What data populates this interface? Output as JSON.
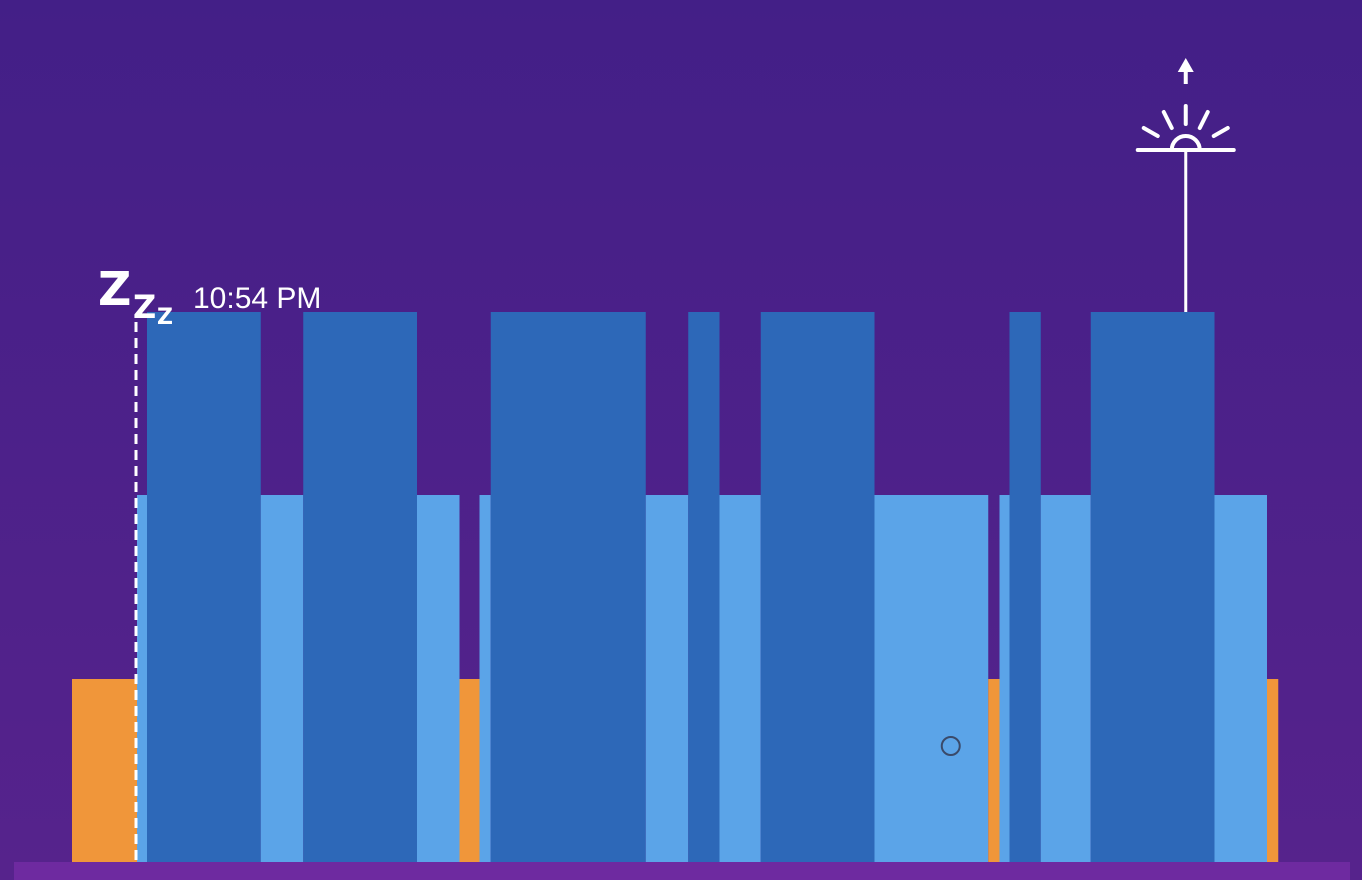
{
  "chart_data": {
    "type": "bar",
    "subtype": "sleep-stage-timeline",
    "sleep_start_label": "10:54 PM",
    "icons": {
      "sleep_start": "zzz-icon",
      "wake": "sunrise-icon",
      "wake_arrow": "up-arrow-icon",
      "cursor": "circle-cursor"
    },
    "stages": [
      {
        "name": "awake",
        "level": 1,
        "color": "#f0963a"
      },
      {
        "name": "light",
        "level": 2,
        "color": "#5ba4e8"
      },
      {
        "name": "deep",
        "level": 3,
        "color": "#2d68b8"
      }
    ],
    "timeline": {
      "start": 0,
      "end": 100
    },
    "segments": [
      {
        "stage": "awake",
        "start": 0.0,
        "end": 5.2
      },
      {
        "stage": "light",
        "start": 5.2,
        "end": 6.0
      },
      {
        "stage": "deep",
        "start": 6.0,
        "end": 15.1
      },
      {
        "stage": "light",
        "start": 15.1,
        "end": 18.5
      },
      {
        "stage": "deep",
        "start": 18.5,
        "end": 27.6
      },
      {
        "stage": "light",
        "start": 27.6,
        "end": 31.0
      },
      {
        "stage": "awake",
        "start": 31.0,
        "end": 32.6
      },
      {
        "stage": "light",
        "start": 32.6,
        "end": 33.5
      },
      {
        "stage": "deep",
        "start": 33.5,
        "end": 45.9
      },
      {
        "stage": "light",
        "start": 45.9,
        "end": 49.3
      },
      {
        "stage": "deep",
        "start": 49.3,
        "end": 51.8
      },
      {
        "stage": "light",
        "start": 51.8,
        "end": 55.1
      },
      {
        "stage": "deep",
        "start": 55.1,
        "end": 64.2
      },
      {
        "stage": "light",
        "start": 64.2,
        "end": 73.3
      },
      {
        "stage": "awake",
        "start": 73.3,
        "end": 74.2
      },
      {
        "stage": "light",
        "start": 74.2,
        "end": 75.0
      },
      {
        "stage": "deep",
        "start": 75.0,
        "end": 77.5
      },
      {
        "stage": "light",
        "start": 77.5,
        "end": 81.5
      },
      {
        "stage": "deep",
        "start": 81.5,
        "end": 91.4
      },
      {
        "stage": "light",
        "start": 91.4,
        "end": 95.6
      },
      {
        "stage": "awake",
        "start": 95.6,
        "end": 96.5
      }
    ],
    "sleep_start_position": 5.2,
    "wake_position": 89.1,
    "cursor_position": 70.3,
    "colors": {
      "background_top": "#431f87",
      "background_bottom": "#56238c",
      "baseline": "#6e2aa0",
      "marker": "#ffffff"
    }
  }
}
